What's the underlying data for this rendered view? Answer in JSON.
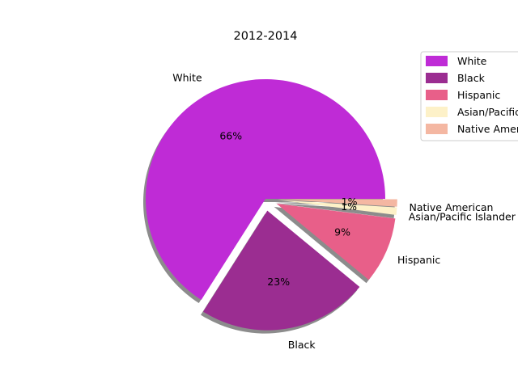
{
  "chart_data": {
    "type": "pie",
    "title": "2012-2014",
    "categories": [
      "White",
      "Black",
      "Hispanic",
      "Asian/Pacific Islander",
      "Native American"
    ],
    "values": [
      66,
      23,
      9,
      1,
      1
    ],
    "percent_labels": [
      "66%",
      "23%",
      "9%",
      "1%",
      "1%"
    ],
    "colors": [
      "#bf2bd6",
      "#9b2d91",
      "#e85f89",
      "#fdf1c8",
      "#f4b7a2"
    ],
    "exploded": [
      false,
      true,
      true,
      true,
      true
    ],
    "shadow": true,
    "legend": {
      "placement": "top-right",
      "entries": [
        "White",
        "Black",
        "Hispanic",
        "Asian/Pacific Islander",
        "Native American"
      ]
    }
  }
}
